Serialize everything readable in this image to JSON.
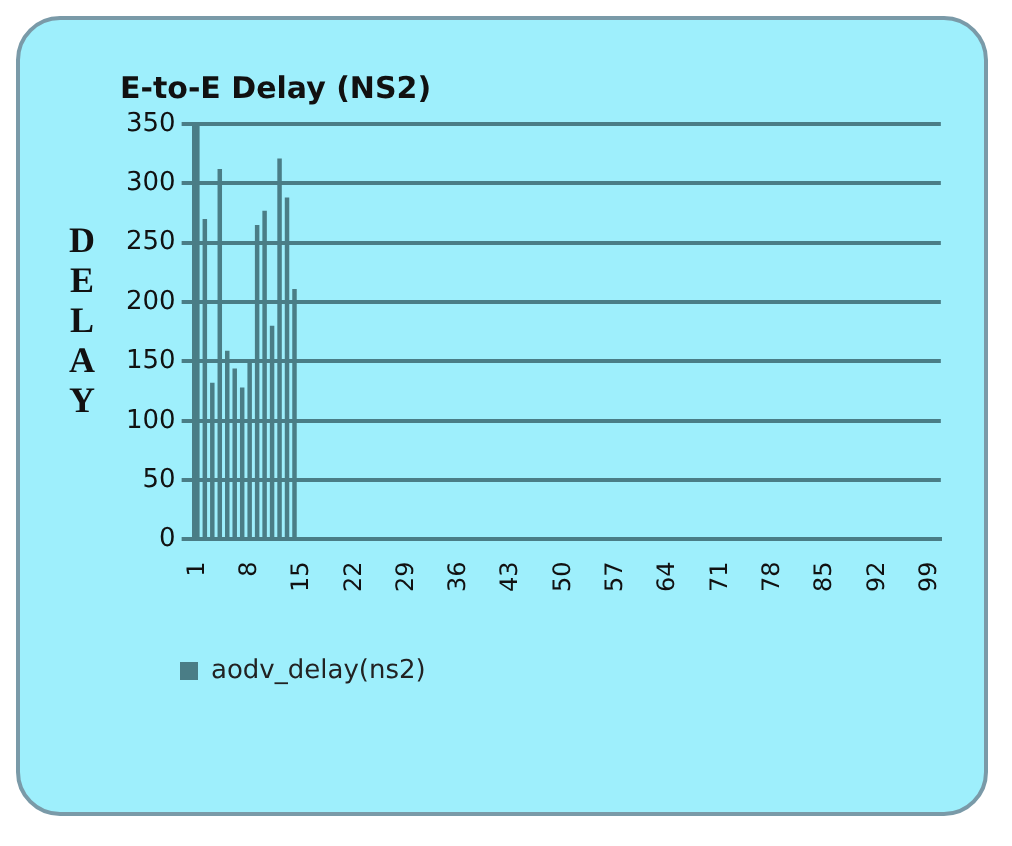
{
  "chart_data": {
    "type": "bar",
    "title": "E-to-E Delay (NS2)",
    "ylabel": "DELAY",
    "categories": [
      "1",
      null,
      null,
      null,
      null,
      null,
      null,
      "8",
      null,
      null,
      null,
      null,
      null,
      null,
      "15",
      null,
      null,
      null,
      null,
      null,
      null,
      "22",
      null,
      null,
      null,
      null,
      null,
      null,
      "29",
      null,
      null,
      null,
      null,
      null,
      null,
      "36",
      null,
      null,
      null,
      null,
      null,
      null,
      "43",
      null,
      null,
      null,
      null,
      null,
      null,
      "50",
      null,
      null,
      null,
      null,
      null,
      null,
      "57",
      null,
      null,
      null,
      null,
      null,
      null,
      "64",
      null,
      null,
      null,
      null,
      null,
      null,
      "71",
      null,
      null,
      null,
      null,
      null,
      null,
      "78",
      null,
      null,
      null,
      null,
      null,
      null,
      "85",
      null,
      null,
      null,
      null,
      null,
      null,
      "92",
      null,
      null,
      null,
      null,
      null,
      null,
      "99",
      null
    ],
    "series": [
      {
        "name": "aodv_delay(ns2)",
        "color": "#4a7d86",
        "values": [
          350,
          270,
          132,
          312,
          159,
          144,
          128,
          150,
          265,
          277,
          180,
          321,
          288,
          211,
          0,
          0,
          0,
          0,
          0,
          0,
          0,
          0,
          0,
          0,
          0,
          0,
          0,
          0,
          0,
          0,
          0,
          0,
          0,
          0,
          0,
          0,
          0,
          0,
          0,
          0,
          0,
          0,
          0,
          0,
          0,
          0,
          0,
          0,
          0,
          0,
          0,
          0,
          0,
          0,
          0,
          0,
          0,
          0,
          0,
          0,
          0,
          0,
          0,
          0,
          0,
          0,
          0,
          0,
          0,
          0,
          0,
          0,
          0,
          0,
          0,
          0,
          0,
          0,
          0,
          0,
          0,
          0,
          0,
          0,
          0,
          0,
          0,
          0,
          0,
          0,
          0,
          0,
          0,
          0,
          0,
          0,
          0,
          0,
          0,
          0
        ]
      }
    ],
    "ylim": [
      0,
      350
    ],
    "yticks": [
      0,
      50,
      100,
      150,
      200,
      250,
      300,
      350
    ],
    "grid": "y",
    "legend": "bottom left"
  }
}
